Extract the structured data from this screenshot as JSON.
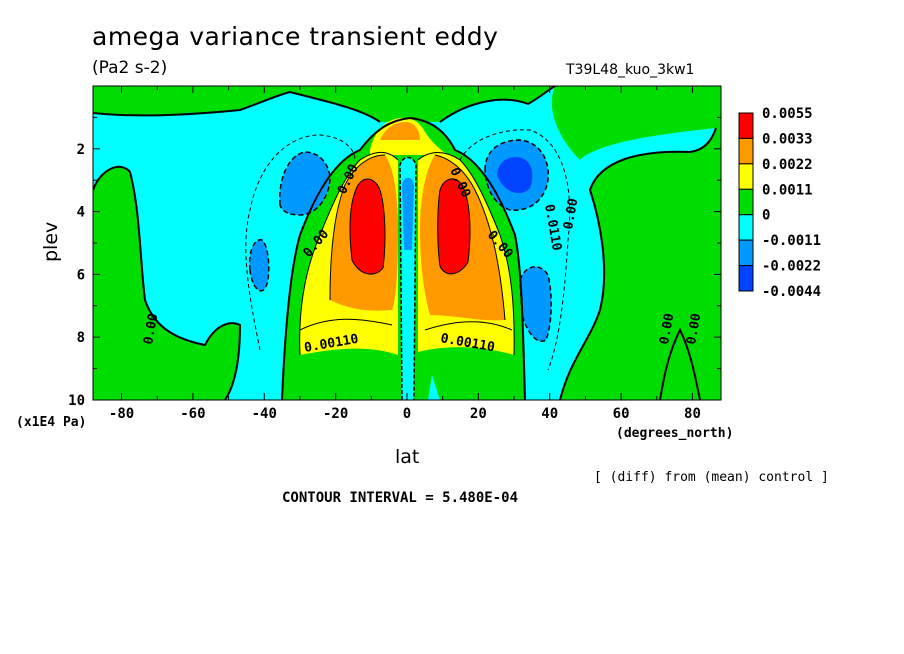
{
  "chart_data": {
    "type": "heatmap",
    "title": "amega variance transient eddy",
    "units": "(Pa2 s-2)",
    "run_label": "T39L48_kuo_3kw1",
    "xlabel": "lat",
    "xunit": "(degrees_north)",
    "ylabel": "plev",
    "yunit": "(x1E4 Pa)",
    "x_ticks": [
      -80,
      -60,
      -40,
      -20,
      0,
      20,
      40,
      60,
      80
    ],
    "y_ticks": [
      2,
      4,
      6,
      8,
      10
    ],
    "xlim": [
      -88,
      88
    ],
    "ylim": [
      10,
      0
    ],
    "y_reversed": true,
    "comparison_note": "[ (diff) from (mean) control ]",
    "contour_interval": "CONTOUR INTERVAL = 5.480E-04",
    "contour_labels": [
      "0.00110",
      "0.00110",
      "0.00",
      "0.00",
      "0.00",
      "0.00",
      "0.00",
      "0.00",
      "0.0110",
      "0.00",
      "0.00"
    ],
    "colorbar": {
      "levels": [
        "0.0055",
        "0.0033",
        "0.0022",
        "0.0011",
        "0",
        "-0.0011",
        "-0.0022",
        "-0.0044"
      ],
      "colors": [
        "#ff0000",
        "#ff9900",
        "#ffff00",
        "#00dd00",
        "#00ffff",
        "#0099ff",
        "#0044ff"
      ]
    },
    "features": [
      {
        "lat": -12,
        "plev": 4.5,
        "value": 0.0055
      },
      {
        "lat": 12,
        "plev": 4.5,
        "value": 0.0055
      },
      {
        "lat": -25,
        "plev": 3.0,
        "value": -0.0025
      },
      {
        "lat": 28,
        "plev": 3.0,
        "value": -0.0044
      },
      {
        "lat": -42,
        "plev": 6.0,
        "value": -0.0012
      },
      {
        "lat": 38,
        "plev": 7.0,
        "value": -0.0016
      },
      {
        "lat": 0,
        "plev": 4.0,
        "value": -0.0015
      }
    ]
  }
}
